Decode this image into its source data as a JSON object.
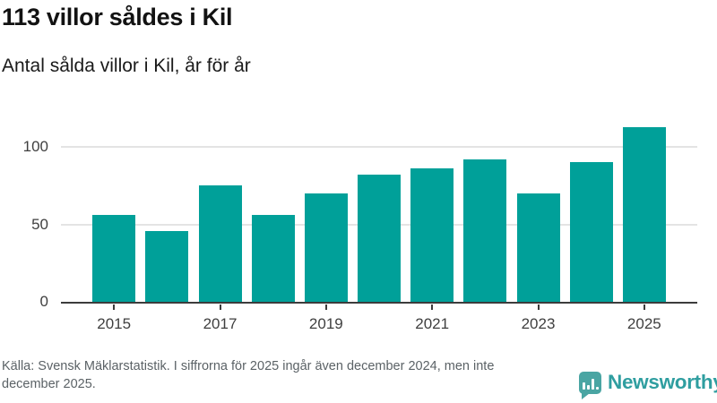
{
  "header": {
    "title": "113 villor såldes i Kil",
    "subtitle": "Antal sålda villor i Kil, år för år"
  },
  "chart_data": {
    "type": "bar",
    "categories": [
      2015,
      2016,
      2017,
      2018,
      2019,
      2020,
      2021,
      2022,
      2023,
      2024,
      2025
    ],
    "values": [
      56,
      46,
      75,
      56,
      70,
      82,
      86,
      92,
      70,
      90,
      113
    ],
    "title": "113 villor såldes i Kil",
    "subtitle": "Antal sålda villor i Kil, år för år",
    "xlabel": "",
    "ylabel": "",
    "ylim": [
      0,
      120
    ],
    "yticks": [
      0,
      50,
      100
    ],
    "xtick_labeled_years": [
      2015,
      2017,
      2019,
      2021,
      2023,
      2025
    ],
    "grid": "horizontal-only",
    "legend": "none",
    "bar_color": "#00a099",
    "gridline_color": "#e4e4e4",
    "axis_color": "#3c3c3c"
  },
  "footer": {
    "source": "Källa: Svensk Mäklarstatistik. I siffrorna för 2025 ingår även december 2024, men inte december 2025.",
    "brand": {
      "name": "Newsworthy",
      "icon": "bar-chart-speech-bubble",
      "text_color": "#2f9ea0",
      "icon_color": "#4aa5a3"
    }
  }
}
